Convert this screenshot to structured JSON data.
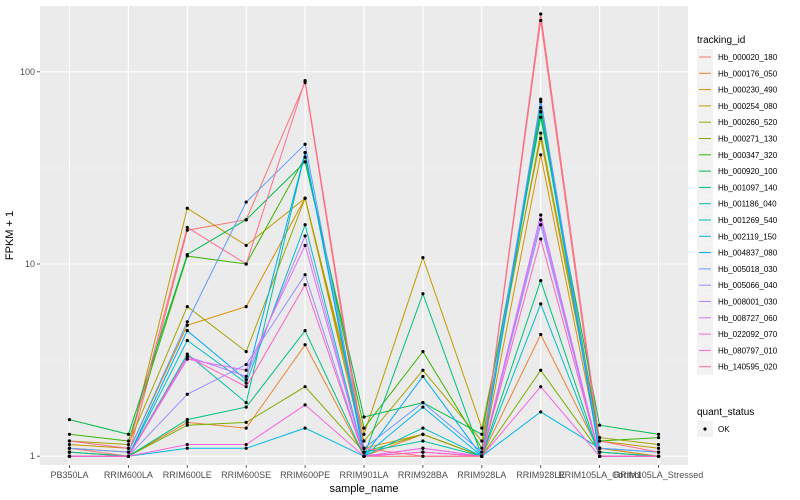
{
  "chart_data": {
    "type": "line",
    "xlabel": "sample_name",
    "ylabel": "FPKM + 1",
    "y_scale": "log10",
    "ylim": [
      0.9,
      220
    ],
    "y_ticks": [
      1,
      10,
      100
    ],
    "y_tick_labels": [
      "1",
      "10",
      "100"
    ],
    "categories": [
      "PB350LA",
      "RRIM600LA",
      "RRIM600LE",
      "RRIM600SE",
      "RRIM600PE",
      "RRIM901LA",
      "RRIM928BA",
      "RRIM928LA",
      "RRIM928LE",
      "RRIM105LA_Control",
      "RRIM105LA_Stressed"
    ],
    "category_labels": [
      "PB350LA",
      "RRIM600LA",
      "RRIM600LE",
      "RRIM600SE",
      "RRIM600PE",
      "RRIM901LA",
      "RRIM928BA",
      "RRIM928LA",
      "RRIM928LE",
      "RRIM105LA_Control",
      "RRIM105LA_Stressed"
    ],
    "legend": {
      "title": "tracking_id",
      "placement": "right",
      "entries": [
        "Hb_000020_180",
        "Hb_000176_050",
        "Hb_000230_490",
        "Hb_000254_080",
        "Hb_000260_520",
        "Hb_000271_130",
        "Hb_000347_320",
        "Hb_000920_100",
        "Hb_001097_140",
        "Hb_001186_040",
        "Hb_001269_540",
        "Hb_002119_150",
        "Hb_004837_080",
        "Hb_005018_030",
        "Hb_005066_040",
        "Hb_008001_030",
        "Hb_008727_060",
        "Hb_022092_070",
        "Hb_080797_010",
        "Hb_140595_020"
      ]
    },
    "shape_legend": {
      "title": "quant_status",
      "entries": [
        "OK"
      ]
    },
    "grid": true,
    "series": [
      {
        "name": "Hb_000020_180",
        "color": "#F8766D",
        "values": [
          1.1,
          1.0,
          15.0,
          17.0,
          88.0,
          1.0,
          1.0,
          1.0,
          185.0,
          1.1,
          1.0
        ]
      },
      {
        "name": "Hb_000176_050",
        "color": "#EA8331",
        "values": [
          1.05,
          1.0,
          1.5,
          1.4,
          3.8,
          1.0,
          1.3,
          1.0,
          4.3,
          1.05,
          1.0
        ]
      },
      {
        "name": "Hb_000230_490",
        "color": "#D89000",
        "values": [
          1.1,
          1.05,
          4.8,
          6.0,
          22.0,
          1.1,
          1.3,
          1.0,
          37.0,
          1.1,
          1.0
        ]
      },
      {
        "name": "Hb_000254_080",
        "color": "#C09B00",
        "values": [
          1.15,
          1.1,
          19.5,
          12.5,
          22.0,
          1.3,
          10.8,
          1.4,
          45.0,
          1.2,
          1.1
        ]
      },
      {
        "name": "Hb_000260_520",
        "color": "#A3A500",
        "values": [
          1.2,
          1.15,
          6.0,
          3.5,
          22.0,
          1.2,
          2.8,
          1.2,
          48.0,
          1.25,
          1.15
        ]
      },
      {
        "name": "Hb_000271_130",
        "color": "#7CAE00",
        "values": [
          1.05,
          1.0,
          1.45,
          1.5,
          2.3,
          1.05,
          1.3,
          1.0,
          2.8,
          1.05,
          1.0
        ]
      },
      {
        "name": "Hb_000347_320",
        "color": "#39B600",
        "values": [
          1.3,
          1.2,
          11.0,
          10.0,
          36.0,
          1.4,
          3.5,
          1.1,
          65.0,
          1.2,
          1.25
        ]
      },
      {
        "name": "Hb_000920_100",
        "color": "#00BB4E",
        "values": [
          1.55,
          1.3,
          11.2,
          17.0,
          34.0,
          1.6,
          1.9,
          1.3,
          58.0,
          1.45,
          1.3
        ]
      },
      {
        "name": "Hb_001097_140",
        "color": "#00BF7D",
        "values": [
          1.0,
          1.0,
          1.55,
          1.8,
          4.5,
          1.0,
          7.0,
          1.0,
          8.2,
          1.0,
          1.0
        ]
      },
      {
        "name": "Hb_001186_040",
        "color": "#00C1A3",
        "values": [
          1.05,
          1.0,
          3.4,
          1.9,
          38.0,
          1.05,
          1.2,
          1.0,
          62.0,
          1.05,
          1.0
        ]
      },
      {
        "name": "Hb_001269_540",
        "color": "#00BFC4",
        "values": [
          1.0,
          1.0,
          4.0,
          2.4,
          16.0,
          1.0,
          1.4,
          1.0,
          6.2,
          1.0,
          1.0
        ]
      },
      {
        "name": "Hb_002119_150",
        "color": "#00B8E7",
        "values": [
          1.0,
          1.0,
          1.1,
          1.1,
          1.4,
          1.0,
          1.8,
          1.0,
          1.7,
          1.1,
          1.05
        ]
      },
      {
        "name": "Hb_004837_080",
        "color": "#00A9FF",
        "values": [
          1.0,
          1.0,
          4.5,
          2.5,
          38.0,
          1.0,
          2.6,
          1.0,
          70.0,
          1.0,
          1.0
        ]
      },
      {
        "name": "Hb_005018_030",
        "color": "#619CFF",
        "values": [
          1.1,
          1.05,
          5.0,
          21.0,
          42.0,
          1.1,
          1.9,
          1.05,
          72.0,
          1.1,
          1.05
        ]
      },
      {
        "name": "Hb_005066_040",
        "color": "#9590FF",
        "values": [
          1.0,
          1.0,
          2.1,
          3.0,
          8.8,
          1.0,
          1.1,
          1.0,
          16.0,
          1.0,
          1.0
        ]
      },
      {
        "name": "Hb_008001_030",
        "color": "#B983FF",
        "values": [
          1.0,
          1.0,
          3.3,
          2.6,
          14.0,
          1.0,
          1.05,
          1.0,
          17.0,
          1.0,
          1.0
        ]
      },
      {
        "name": "Hb_008727_060",
        "color": "#DB72FB",
        "values": [
          1.0,
          1.0,
          3.2,
          2.8,
          12.5,
          1.0,
          1.05,
          1.0,
          18.0,
          1.0,
          1.0
        ]
      },
      {
        "name": "Hb_022092_070",
        "color": "#F564E3",
        "values": [
          1.0,
          1.0,
          1.15,
          1.15,
          1.85,
          1.0,
          1.1,
          1.0,
          2.3,
          1.0,
          1.0
        ]
      },
      {
        "name": "Hb_080797_010",
        "color": "#FF61C3",
        "values": [
          1.0,
          1.0,
          3.3,
          2.3,
          7.8,
          1.0,
          1.05,
          1.0,
          13.5,
          1.0,
          1.0
        ]
      },
      {
        "name": "Hb_140595_020",
        "color": "#FF6C91",
        "values": [
          1.2,
          1.1,
          15.5,
          10.0,
          90.0,
          1.1,
          1.0,
          1.0,
          200.0,
          1.2,
          1.05
        ]
      }
    ]
  }
}
